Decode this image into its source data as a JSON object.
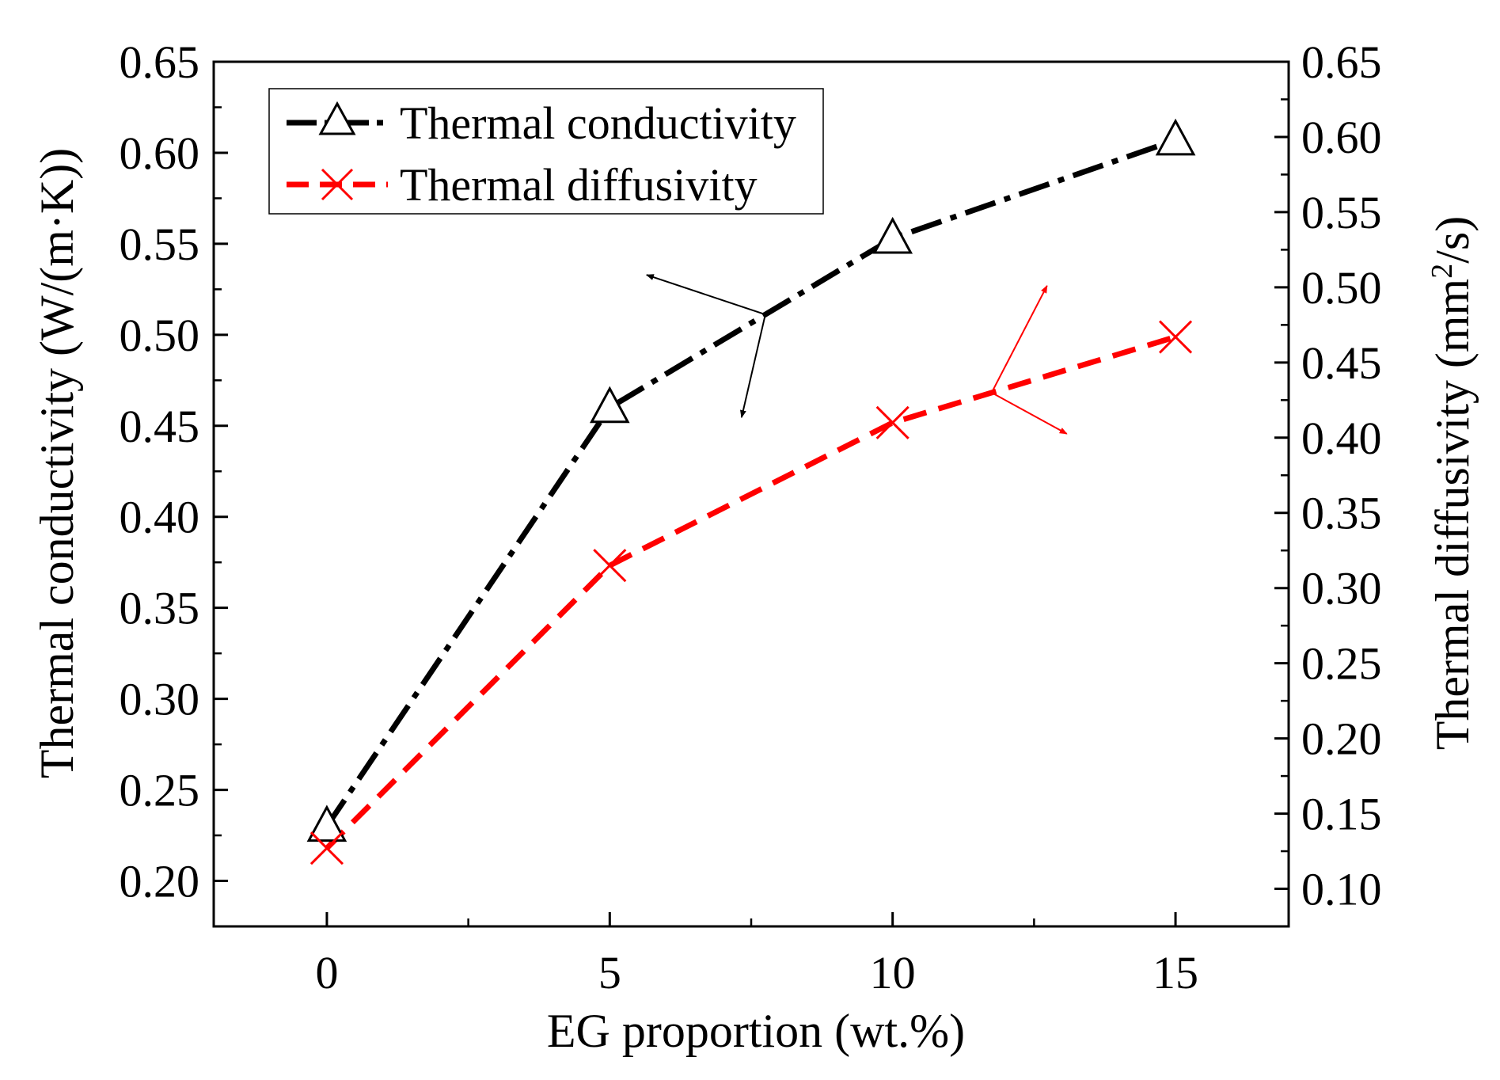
{
  "chart_data": {
    "type": "line",
    "xlabel": "EG proportion (wt.%)",
    "ylabel_left": "Thermal conductivity (W/(m·K))",
    "ylabel_right_prefix": "Thermal diffusivity (mm",
    "ylabel_right_sup": "2",
    "ylabel_right_suffix": "/s)",
    "xlim": [
      -2,
      17
    ],
    "ylim_left": [
      0.175,
      0.65
    ],
    "ylim_right": [
      0.075,
      0.65
    ],
    "x_ticks": [
      0,
      5,
      10,
      15
    ],
    "x_tick_labels": [
      "0",
      "5",
      "10",
      "15"
    ],
    "y_left_ticks": [
      0.2,
      0.25,
      0.3,
      0.35,
      0.4,
      0.45,
      0.5,
      0.55,
      0.6,
      0.65
    ],
    "y_left_tick_labels": [
      "0.20",
      "0.25",
      "0.30",
      "0.35",
      "0.40",
      "0.45",
      "0.50",
      "0.55",
      "0.60",
      "0.65"
    ],
    "y_right_ticks": [
      0.1,
      0.15,
      0.2,
      0.25,
      0.3,
      0.35,
      0.4,
      0.45,
      0.5,
      0.55,
      0.6,
      0.65
    ],
    "y_right_tick_labels": [
      "0.10",
      "0.15",
      "0.20",
      "0.25",
      "0.30",
      "0.35",
      "0.40",
      "0.45",
      "0.50",
      "0.55",
      "0.60",
      "0.65"
    ],
    "legend_position": "top-left",
    "series": [
      {
        "name": "Thermal conductivity",
        "axis": "left",
        "x": [
          0,
          5,
          10,
          15
        ],
        "values": [
          0.23,
          0.46,
          0.553,
          0.607
        ],
        "color": "#000000",
        "marker": "triangle",
        "line_style": "dash-dot"
      },
      {
        "name": "Thermal diffusivity",
        "axis": "right",
        "x": [
          0,
          5,
          10,
          15
        ],
        "values": [
          0.127,
          0.315,
          0.41,
          0.467
        ],
        "color": "#ff0000",
        "marker": "x",
        "line_style": "dashed"
      }
    ],
    "annotations": [
      {
        "text": "",
        "description": "arrows pointing from conductivity curve to left axis",
        "color": "#000000"
      },
      {
        "text": "",
        "description": "arrows pointing from diffusivity curve to right axis",
        "color": "#ff0000"
      }
    ]
  }
}
